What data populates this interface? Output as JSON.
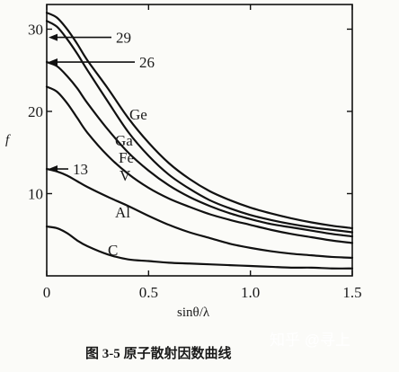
{
  "chart_data": {
    "type": "line",
    "xlabel": "sinθ/λ",
    "ylabel": "f",
    "xlim": [
      0,
      1.5
    ],
    "ylim": [
      0,
      33
    ],
    "x_ticks": [
      "0",
      "0.5",
      "1.0",
      "1.5"
    ],
    "y_ticks": [
      "10",
      "20",
      "30"
    ],
    "grid": false,
    "caption": "图 3-5   原子散射因数曲线",
    "x": [
      0,
      0.05,
      0.1,
      0.15,
      0.2,
      0.3,
      0.4,
      0.5,
      0.6,
      0.7,
      0.8,
      0.9,
      1.0,
      1.1,
      1.2,
      1.3,
      1.4,
      1.5
    ],
    "series": [
      {
        "name": "Ge",
        "values": [
          32,
          31.4,
          30.0,
          28.2,
          26.2,
          22.8,
          19.2,
          16.2,
          13.7,
          11.8,
          10.3,
          9.2,
          8.3,
          7.6,
          7.0,
          6.5,
          6.1,
          5.8
        ]
      },
      {
        "name": "Ga",
        "values": [
          31,
          30.3,
          28.8,
          27.0,
          25.0,
          21.2,
          17.5,
          14.6,
          12.3,
          10.6,
          9.2,
          8.2,
          7.4,
          6.8,
          6.3,
          5.9,
          5.6,
          5.3
        ]
      },
      {
        "name": "Fe",
        "values": [
          26,
          25.5,
          24.3,
          22.8,
          21.0,
          17.8,
          15.0,
          12.8,
          11.0,
          9.6,
          8.5,
          7.6,
          6.9,
          6.3,
          5.9,
          5.5,
          5.1,
          4.8
        ]
      },
      {
        "name": "V",
        "values": [
          23,
          22.4,
          21.0,
          19.2,
          17.4,
          14.6,
          12.4,
          10.7,
          9.4,
          8.4,
          7.5,
          6.8,
          6.2,
          5.6,
          5.1,
          4.7,
          4.3,
          4.0
        ]
      },
      {
        "name": "Al",
        "values": [
          13,
          12.7,
          12.2,
          11.5,
          10.8,
          9.6,
          8.5,
          7.3,
          6.2,
          5.3,
          4.6,
          3.9,
          3.4,
          3.0,
          2.7,
          2.5,
          2.3,
          2.2
        ]
      },
      {
        "name": "C",
        "values": [
          6,
          5.8,
          5.2,
          4.3,
          3.6,
          2.6,
          2.0,
          1.8,
          1.6,
          1.5,
          1.4,
          1.3,
          1.2,
          1.1,
          1.0,
          1.0,
          0.9,
          0.9
        ]
      }
    ],
    "annotations": [
      {
        "text": "29",
        "y": 29
      },
      {
        "text": "26",
        "y": 26
      },
      {
        "text": "13",
        "y": 13
      }
    ]
  },
  "watermark": "知乎 @寻上"
}
